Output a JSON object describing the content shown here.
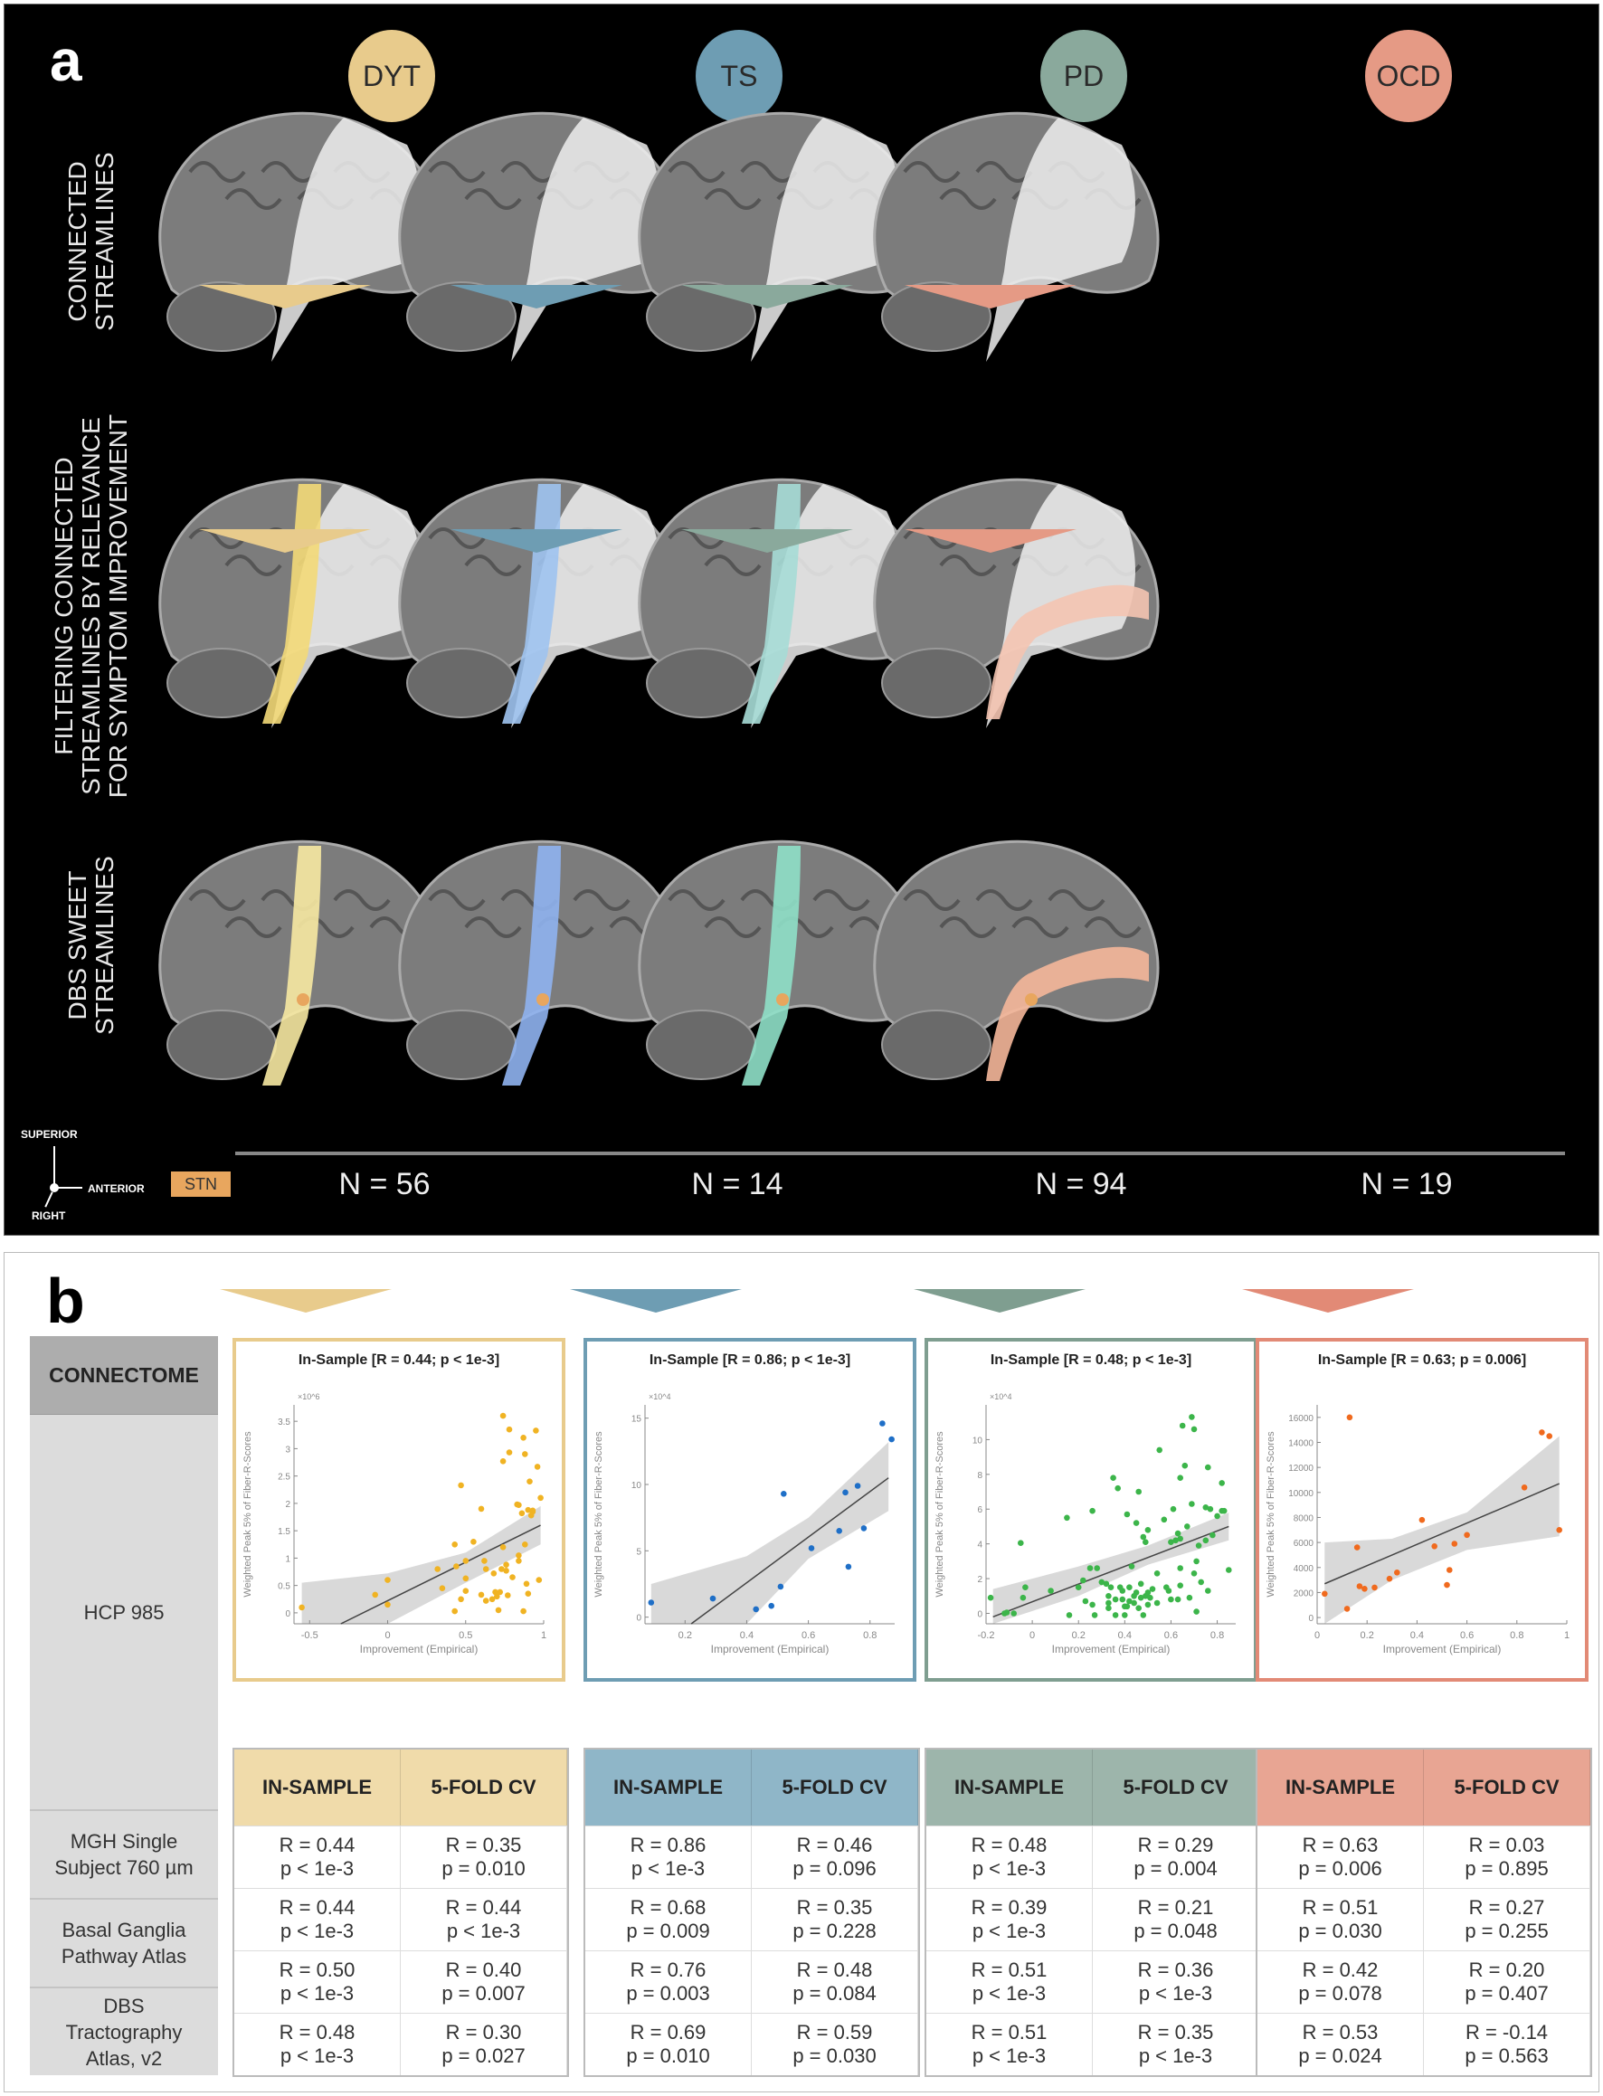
{
  "panel_a": {
    "letter": "a",
    "row_labels": [
      "CONNECTED\nSTREAMLINES",
      "FILTERING CONNECTED\nSTREAMLINES BY RELEVANCE\nFOR SYMPTOM IMPROVEMENT",
      "DBS SWEET\nSTREAMLINES"
    ],
    "diseases": [
      {
        "label": "DYT",
        "color": "#e8cb8c",
        "tract_color": "#f3d978",
        "sweet_color": "#f7e9a2",
        "n": "N = 56"
      },
      {
        "label": "TS",
        "color": "#6e9db3",
        "tract_color": "#9fc3f0",
        "sweet_color": "#8fb2f0",
        "n": "N = 14"
      },
      {
        "label": "PD",
        "color": "#8aa99c",
        "tract_color": "#a6dcd6",
        "sweet_color": "#8fe0c8",
        "n": "N = 94"
      },
      {
        "label": "OCD",
        "color": "#e59a85",
        "tract_color": "#f4c4b1",
        "sweet_color": "#f5b79a",
        "n": "N = 19"
      }
    ],
    "orientation": {
      "superior": "SUPERIOR",
      "anterior": "ANTERIOR",
      "right": "RIGHT"
    },
    "legend": {
      "label": "STN",
      "color": "#e8a65e"
    }
  },
  "panel_b": {
    "letter": "b",
    "connectome_header": "CONNECTOME",
    "connectomes": [
      "HCP 985",
      "MGH Single\nSubject 760 µm",
      "Basal Ganglia\nPathway Atlas",
      "DBS\nTractography\nAtlas, v2"
    ],
    "table_headers": [
      "IN-SAMPLE",
      "5-FOLD CV"
    ],
    "groups": [
      {
        "disease": "DYT",
        "color": "#e8cb8c",
        "header_color": "#f0dbaa",
        "rows": [
          [
            "R = 0.44\np < 1e-3",
            "R = 0.35\np = 0.010"
          ],
          [
            "R = 0.44\np < 1e-3",
            "R = 0.44\np < 1e-3"
          ],
          [
            "R = 0.50\np < 1e-3",
            "R = 0.40\np = 0.007"
          ],
          [
            "R = 0.48\np < 1e-3",
            "R = 0.30\np = 0.027"
          ]
        ]
      },
      {
        "disease": "TS",
        "color": "#6e9db3",
        "header_color": "#8fb6c8",
        "rows": [
          [
            "R = 0.86\np < 1e-3",
            "R = 0.46\np = 0.096"
          ],
          [
            "R = 0.68\np = 0.009",
            "R = 0.35\np = 0.228"
          ],
          [
            "R = 0.76\np = 0.003",
            "R = 0.48\np = 0.084"
          ],
          [
            "R = 0.69\np = 0.010",
            "R = 0.59\np = 0.030"
          ]
        ]
      },
      {
        "disease": "PD",
        "color": "#7f9e90",
        "header_color": "#9db5ab",
        "rows": [
          [
            "R = 0.48\np < 1e-3",
            "R = 0.29\np = 0.004"
          ],
          [
            "R = 0.39\np < 1e-3",
            "R = 0.21\np = 0.048"
          ],
          [
            "R = 0.51\np < 1e-3",
            "R = 0.36\np < 1e-3"
          ],
          [
            "R = 0.51\np < 1e-3",
            "R = 0.35\np < 1e-3"
          ]
        ]
      },
      {
        "disease": "OCD",
        "color": "#e28a76",
        "header_color": "#e8a593",
        "rows": [
          [
            "R = 0.63\np = 0.006",
            "R = 0.03\np = 0.895"
          ],
          [
            "R = 0.51\np = 0.030",
            "R = 0.27\np = 0.255"
          ],
          [
            "R = 0.42\np = 0.078",
            "R = 0.20\np = 0.407"
          ],
          [
            "R = 0.53\np = 0.024",
            "R = -0.14\np = 0.563"
          ]
        ]
      }
    ]
  },
  "chart_data": [
    {
      "type": "scatter",
      "title": "In-Sample [R = 0.44; p < 1e-3]",
      "xlabel": "Improvement (Empirical)",
      "ylabel": "Weighted Peak 5% of Fiber-R-Scores",
      "y_multiplier": "×10^6",
      "xlim": [
        -0.6,
        1.0
      ],
      "ylim": [
        -0.2,
        3.8
      ],
      "xticks": [
        -0.5,
        0,
        0.5,
        1
      ],
      "xtick_labels": [
        "-0.5",
        "0",
        "0.5",
        "1"
      ],
      "yticks": [
        0,
        0.5,
        1,
        1.5,
        2,
        2.5,
        3,
        3.5
      ],
      "ytick_labels": [
        "0",
        "0.5",
        "1",
        "1.5",
        "2",
        "2.5",
        "3",
        "3.5"
      ],
      "point_color": "#f0b323",
      "fit": {
        "x": [
          -0.3,
          0.98
        ],
        "y": [
          -0.2,
          1.6
        ]
      },
      "ci_band": {
        "x": [
          -0.55,
          0.0,
          0.5,
          0.98
        ],
        "lower": [
          -0.6,
          -0.35,
          0.55,
          1.25
        ],
        "upper": [
          0.55,
          0.72,
          1.1,
          1.95
        ]
      },
      "points": [
        [
          -0.55,
          0.1
        ],
        [
          -0.08,
          0.33
        ],
        [
          0,
          0.6
        ],
        [
          0,
          0.15
        ],
        [
          0.32,
          0.8
        ],
        [
          0.35,
          0.45
        ],
        [
          0.43,
          1.25
        ],
        [
          0.44,
          0.85
        ],
        [
          0.43,
          0.03
        ],
        [
          0.47,
          2.33
        ],
        [
          0.47,
          0.25
        ],
        [
          0.5,
          0.95
        ],
        [
          0.5,
          0.63
        ],
        [
          0.5,
          0.4
        ],
        [
          0.55,
          1.3
        ],
        [
          0.6,
          1.9
        ],
        [
          0.6,
          0.33
        ],
        [
          0.62,
          0.95
        ],
        [
          0.63,
          0.8
        ],
        [
          0.63,
          0.22
        ],
        [
          0.67,
          0.25
        ],
        [
          0.68,
          0.72
        ],
        [
          0.69,
          0.38
        ],
        [
          0.7,
          0.3
        ],
        [
          0.71,
          0.05
        ],
        [
          0.72,
          0.38
        ],
        [
          0.73,
          0.8
        ],
        [
          0.74,
          2.77
        ],
        [
          0.74,
          3.6
        ],
        [
          0.74,
          1.2
        ],
        [
          0.76,
          0.77
        ],
        [
          0.76,
          0.88
        ],
        [
          0.77,
          0.32
        ],
        [
          0.78,
          2.93
        ],
        [
          0.78,
          3.35
        ],
        [
          0.8,
          0.65
        ],
        [
          0.83,
          1.98
        ],
        [
          0.84,
          1.97
        ],
        [
          0.84,
          1.05
        ],
        [
          0.84,
          0.95
        ],
        [
          0.87,
          3.2
        ],
        [
          0.87,
          0.03
        ],
        [
          0.88,
          2.9
        ],
        [
          0.88,
          1.25
        ],
        [
          0.89,
          0.53
        ],
        [
          0.9,
          0.35
        ],
        [
          0.9,
          1.88
        ],
        [
          0.91,
          2.4
        ],
        [
          0.93,
          1.85
        ],
        [
          0.95,
          3.33
        ],
        [
          0.96,
          2.67
        ],
        [
          0.97,
          0.6
        ],
        [
          0.98,
          2.1
        ],
        [
          0.93,
          1.87
        ],
        [
          0.92,
          1.78
        ],
        [
          0.86,
          1.82
        ]
      ]
    },
    {
      "type": "scatter",
      "title": "In-Sample [R = 0.86; p < 1e-3]",
      "xlabel": "Improvement (Empirical)",
      "ylabel": "Weighted Peak 5% of Fiber-R-Scores",
      "y_multiplier": "×10^4",
      "xlim": [
        0.07,
        0.88
      ],
      "ylim": [
        -0.5,
        16
      ],
      "xticks": [
        0.2,
        0.4,
        0.6,
        0.8
      ],
      "xtick_labels": [
        "0.2",
        "0.4",
        "0.6",
        "0.8"
      ],
      "yticks": [
        0,
        5,
        10,
        15
      ],
      "ytick_labels": [
        "0",
        "5",
        "10",
        "15"
      ],
      "point_color": "#1f6fc7",
      "fit": {
        "x": [
          0.22,
          0.86
        ],
        "y": [
          -0.5,
          10.5
        ]
      },
      "ci_band": {
        "x": [
          0.09,
          0.4,
          0.6,
          0.86
        ],
        "lower": [
          -2,
          -0.5,
          4.4,
          8
        ],
        "upper": [
          2.5,
          4.6,
          7.5,
          13.2
        ]
      },
      "points": [
        [
          0.09,
          1.1
        ],
        [
          0.29,
          1.4
        ],
        [
          0.43,
          0.6
        ],
        [
          0.48,
          0.85
        ],
        [
          0.51,
          2.3
        ],
        [
          0.52,
          9.3
        ],
        [
          0.61,
          5.2
        ],
        [
          0.7,
          6.5
        ],
        [
          0.72,
          9.4
        ],
        [
          0.73,
          3.8
        ],
        [
          0.76,
          9.9
        ],
        [
          0.78,
          6.7
        ],
        [
          0.84,
          14.6
        ],
        [
          0.87,
          13.4
        ]
      ]
    },
    {
      "type": "scatter",
      "title": "In-Sample [R = 0.48; p < 1e-3]",
      "xlabel": "Improvement (Empirical)",
      "ylabel": "Weighted Peak 5% of Fiber-R-Scores",
      "y_multiplier": "×10^4",
      "xlim": [
        -0.2,
        0.88
      ],
      "ylim": [
        -0.6,
        12
      ],
      "xticks": [
        -0.2,
        0,
        0.2,
        0.4,
        0.6,
        0.8
      ],
      "xtick_labels": [
        "-0.2",
        "0",
        "0.2",
        "0.4",
        "0.6",
        "0.8"
      ],
      "yticks": [
        0,
        2,
        4,
        6,
        8,
        10
      ],
      "ytick_labels": [
        "0",
        "2",
        "4",
        "6",
        "8",
        "10"
      ],
      "point_color": "#3cb54a",
      "fit": {
        "x": [
          -0.17,
          0.85
        ],
        "y": [
          -0.2,
          5.0
        ]
      },
      "ci_band": {
        "x": [
          -0.17,
          0.2,
          0.5,
          0.85
        ],
        "lower": [
          -1.5,
          1.0,
          2.8,
          4.2
        ],
        "upper": [
          1.4,
          2.7,
          3.9,
          5.8
        ]
      },
      "points": [
        [
          -0.18,
          0.9
        ],
        [
          -0.12,
          0
        ],
        [
          -0.11,
          0.05
        ],
        [
          -0.08,
          0
        ],
        [
          -0.05,
          4.05
        ],
        [
          -0.04,
          0.9
        ],
        [
          -0.03,
          1.5
        ],
        [
          0.08,
          1.3
        ],
        [
          0.15,
          5.5
        ],
        [
          0.16,
          -0.1
        ],
        [
          0.2,
          1.5
        ],
        [
          0.22,
          1.9
        ],
        [
          0.23,
          0.7
        ],
        [
          0.25,
          2.6
        ],
        [
          0.26,
          0.5
        ],
        [
          0.26,
          5.9
        ],
        [
          0.27,
          -0.1
        ],
        [
          0.28,
          2.6
        ],
        [
          0.32,
          1.7
        ],
        [
          0.33,
          1.0
        ],
        [
          0.33,
          0.6
        ],
        [
          0.33,
          0.3
        ],
        [
          0.34,
          1.5
        ],
        [
          0.35,
          7.8
        ],
        [
          0.36,
          -0.1
        ],
        [
          0.37,
          7.2
        ],
        [
          0.38,
          1.5
        ],
        [
          0.39,
          0.8
        ],
        [
          0.39,
          1.3
        ],
        [
          0.4,
          -0.1
        ],
        [
          0.41,
          5.7
        ],
        [
          0.41,
          0.4
        ],
        [
          0.42,
          1.5
        ],
        [
          0.42,
          0.7
        ],
        [
          0.43,
          2.7
        ],
        [
          0.44,
          1.0
        ],
        [
          0.44,
          0.6
        ],
        [
          0.45,
          1.2
        ],
        [
          0.45,
          5.2
        ],
        [
          0.46,
          7.0
        ],
        [
          0.47,
          1.7
        ],
        [
          0.47,
          0.9
        ],
        [
          0.48,
          -0.1
        ],
        [
          0.48,
          4.4
        ],
        [
          0.49,
          4.1
        ],
        [
          0.49,
          1.0
        ],
        [
          0.5,
          1.2
        ],
        [
          0.5,
          0.5
        ],
        [
          0.5,
          4.8
        ],
        [
          0.54,
          2.3
        ],
        [
          0.54,
          0.6
        ],
        [
          0.55,
          9.4
        ],
        [
          0.57,
          5.4
        ],
        [
          0.58,
          1.5
        ],
        [
          0.59,
          1.3
        ],
        [
          0.6,
          0.8
        ],
        [
          0.61,
          6.0
        ],
        [
          0.62,
          4.2
        ],
        [
          0.63,
          4.6
        ],
        [
          0.63,
          0.8
        ],
        [
          0.64,
          2.6
        ],
        [
          0.64,
          1.6
        ],
        [
          0.64,
          7.8
        ],
        [
          0.64,
          4.3
        ],
        [
          0.65,
          10.8
        ],
        [
          0.66,
          8.5
        ],
        [
          0.67,
          5.0
        ],
        [
          0.68,
          0.9
        ],
        [
          0.69,
          11.3
        ],
        [
          0.69,
          6.3
        ],
        [
          0.7,
          10.6
        ],
        [
          0.7,
          2.3
        ],
        [
          0.71,
          3.0
        ],
        [
          0.71,
          0.1
        ],
        [
          0.72,
          3.9
        ],
        [
          0.73,
          1.8
        ],
        [
          0.75,
          4.2
        ],
        [
          0.75,
          6.1
        ],
        [
          0.76,
          8.4
        ],
        [
          0.76,
          1.3
        ],
        [
          0.77,
          6.0
        ],
        [
          0.78,
          4.5
        ],
        [
          0.8,
          5.6
        ],
        [
          0.82,
          5.9
        ],
        [
          0.82,
          7.5
        ],
        [
          0.83,
          5.9
        ],
        [
          0.85,
          2.5
        ],
        [
          0.6,
          4.1
        ],
        [
          0.51,
          0.9
        ],
        [
          0.36,
          0.8
        ],
        [
          0.4,
          0.4
        ],
        [
          0.46,
          0.3
        ],
        [
          0.52,
          1.4
        ],
        [
          0.3,
          1.8
        ]
      ]
    },
    {
      "type": "scatter",
      "title": "In-Sample [R = 0.63; p = 0.006]",
      "xlabel": "Improvement (Empirical)",
      "ylabel": "Weighted Peak 5% of Fiber-R-Scores",
      "xlim": [
        0,
        1.0
      ],
      "ylim": [
        -500,
        17000
      ],
      "xticks": [
        0,
        0.2,
        0.4,
        0.6,
        0.8,
        1
      ],
      "xtick_labels": [
        "0",
        "0.2",
        "0.4",
        "0.6",
        "0.8",
        "1"
      ],
      "yticks": [
        0,
        2000,
        4000,
        6000,
        8000,
        10000,
        12000,
        14000,
        16000
      ],
      "ytick_labels": [
        "0",
        "2000",
        "4000",
        "6000",
        "8000",
        "10000",
        "12000",
        "14000",
        "16000"
      ],
      "point_color": "#f06a1e",
      "fit": {
        "x": [
          0.03,
          0.97
        ],
        "y": [
          2700,
          10700
        ]
      },
      "ci_band": {
        "x": [
          0.03,
          0.3,
          0.6,
          0.97
        ],
        "lower": [
          -500,
          3000,
          5400,
          6500
        ],
        "upper": [
          6000,
          6300,
          8400,
          14500
        ]
      },
      "points": [
        [
          0.03,
          1900
        ],
        [
          0.12,
          700
        ],
        [
          0.13,
          16000
        ],
        [
          0.16,
          5600
        ],
        [
          0.17,
          2500
        ],
        [
          0.19,
          2300
        ],
        [
          0.23,
          2400
        ],
        [
          0.29,
          3100
        ],
        [
          0.32,
          3600
        ],
        [
          0.42,
          7800
        ],
        [
          0.47,
          5700
        ],
        [
          0.52,
          2600
        ],
        [
          0.53,
          3800
        ],
        [
          0.55,
          5900
        ],
        [
          0.6,
          6600
        ],
        [
          0.83,
          10400
        ],
        [
          0.9,
          14800
        ],
        [
          0.93,
          14500
        ],
        [
          0.97,
          7000
        ]
      ]
    }
  ]
}
